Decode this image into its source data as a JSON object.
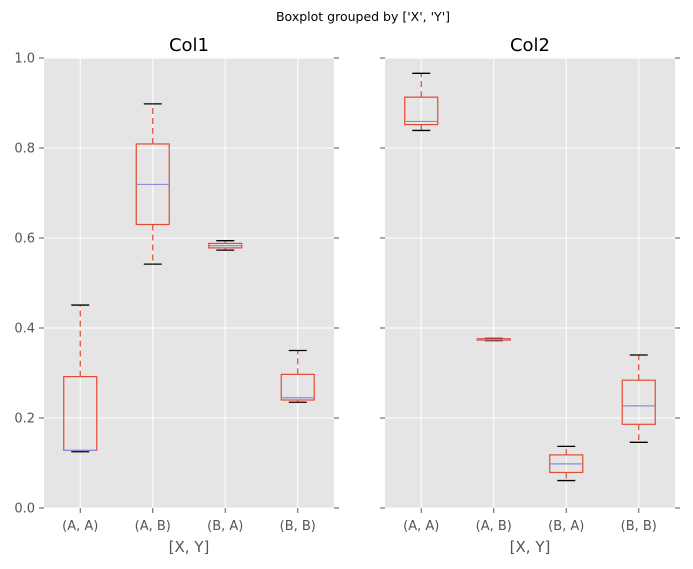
{
  "suptitle": "Boxplot grouped by ['X', 'Y']",
  "chart_data": {
    "type": "boxplot",
    "suptitle": "Boxplot grouped by ['X', 'Y']",
    "ylim": [
      0.0,
      1.0
    ],
    "yticks": [
      "0.0",
      "0.2",
      "0.4",
      "0.6",
      "0.8",
      "1.0"
    ],
    "grid": true,
    "sharey": true,
    "colors": {
      "panel_bg": "#e5e5e5",
      "grid": "#ffffff",
      "box": "#e24a33",
      "median": "#8b8bd6",
      "cap": "#000000",
      "whisker": "#e24a33",
      "tick_label": "#555555"
    },
    "panels": [
      {
        "title": "Col1",
        "xlabel": "[X, Y]",
        "categories": [
          "(A, A)",
          "(A, B)",
          "(B, A)",
          "(B, B)"
        ],
        "boxes": [
          {
            "whislo": 0.125,
            "q1": 0.128,
            "med": 0.128,
            "q3": 0.292,
            "whishi": 0.451
          },
          {
            "whislo": 0.542,
            "q1": 0.63,
            "med": 0.719,
            "q3": 0.809,
            "whishi": 0.898
          },
          {
            "whislo": 0.573,
            "q1": 0.578,
            "med": 0.583,
            "q3": 0.588,
            "whishi": 0.594
          },
          {
            "whislo": 0.235,
            "q1": 0.24,
            "med": 0.245,
            "q3": 0.297,
            "whishi": 0.35
          }
        ]
      },
      {
        "title": "Col2",
        "xlabel": "[X, Y]",
        "categories": [
          "(A, A)",
          "(A, B)",
          "(B, A)",
          "(B, B)"
        ],
        "boxes": [
          {
            "whislo": 0.839,
            "q1": 0.852,
            "med": 0.859,
            "q3": 0.913,
            "whishi": 0.966
          },
          {
            "whislo": 0.372,
            "q1": 0.373,
            "med": 0.374,
            "q3": 0.376,
            "whishi": 0.377
          },
          {
            "whislo": 0.061,
            "q1": 0.079,
            "med": 0.098,
            "q3": 0.118,
            "whishi": 0.137
          },
          {
            "whislo": 0.146,
            "q1": 0.186,
            "med": 0.227,
            "q3": 0.284,
            "whishi": 0.34
          }
        ]
      }
    ]
  }
}
